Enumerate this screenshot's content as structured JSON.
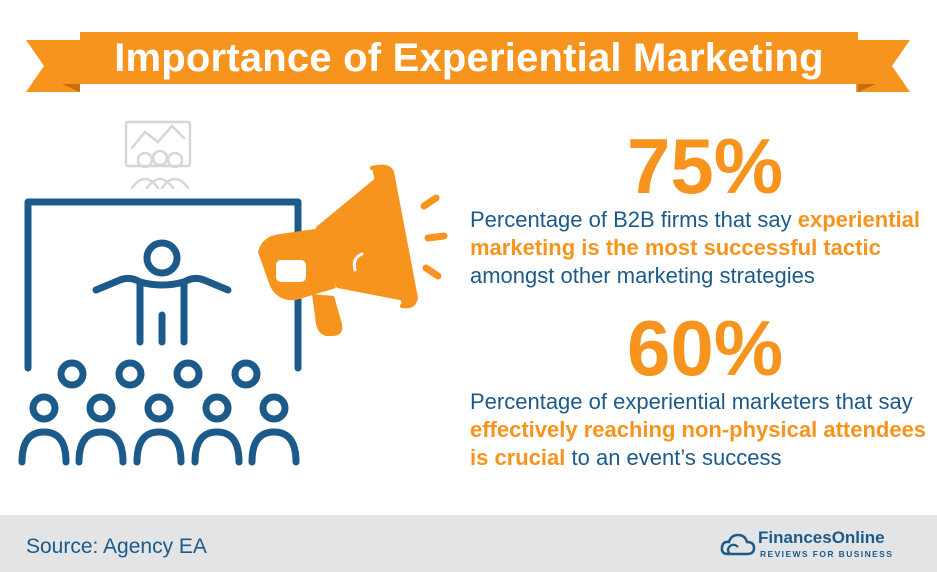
{
  "title": "Importance of Experiential Marketing",
  "stats": [
    {
      "value": "75%",
      "text_before": "Percentage of B2B firms that say ",
      "highlight": "experiential marketing is the most successful tactic",
      "text_after": " amongst other marketing strategies"
    },
    {
      "value": "60%",
      "text_before": "Percentage of experiential marketers that say ",
      "highlight": "effectively reaching non-physical attendees is crucial",
      "text_after": " to an event’s success"
    }
  ],
  "footer": {
    "source": "Source: Agency EA",
    "logo_name": "FinancesOnline",
    "logo_tagline": "REVIEWS FOR BUSINESS"
  },
  "colors": {
    "accent": "#f7941d",
    "primary": "#1c5a8a",
    "footer_bg": "#e3e4e6"
  },
  "icons": [
    "presentation-audience-icon",
    "megaphone-icon",
    "audience-chart-icon",
    "cloud-logo-icon"
  ]
}
